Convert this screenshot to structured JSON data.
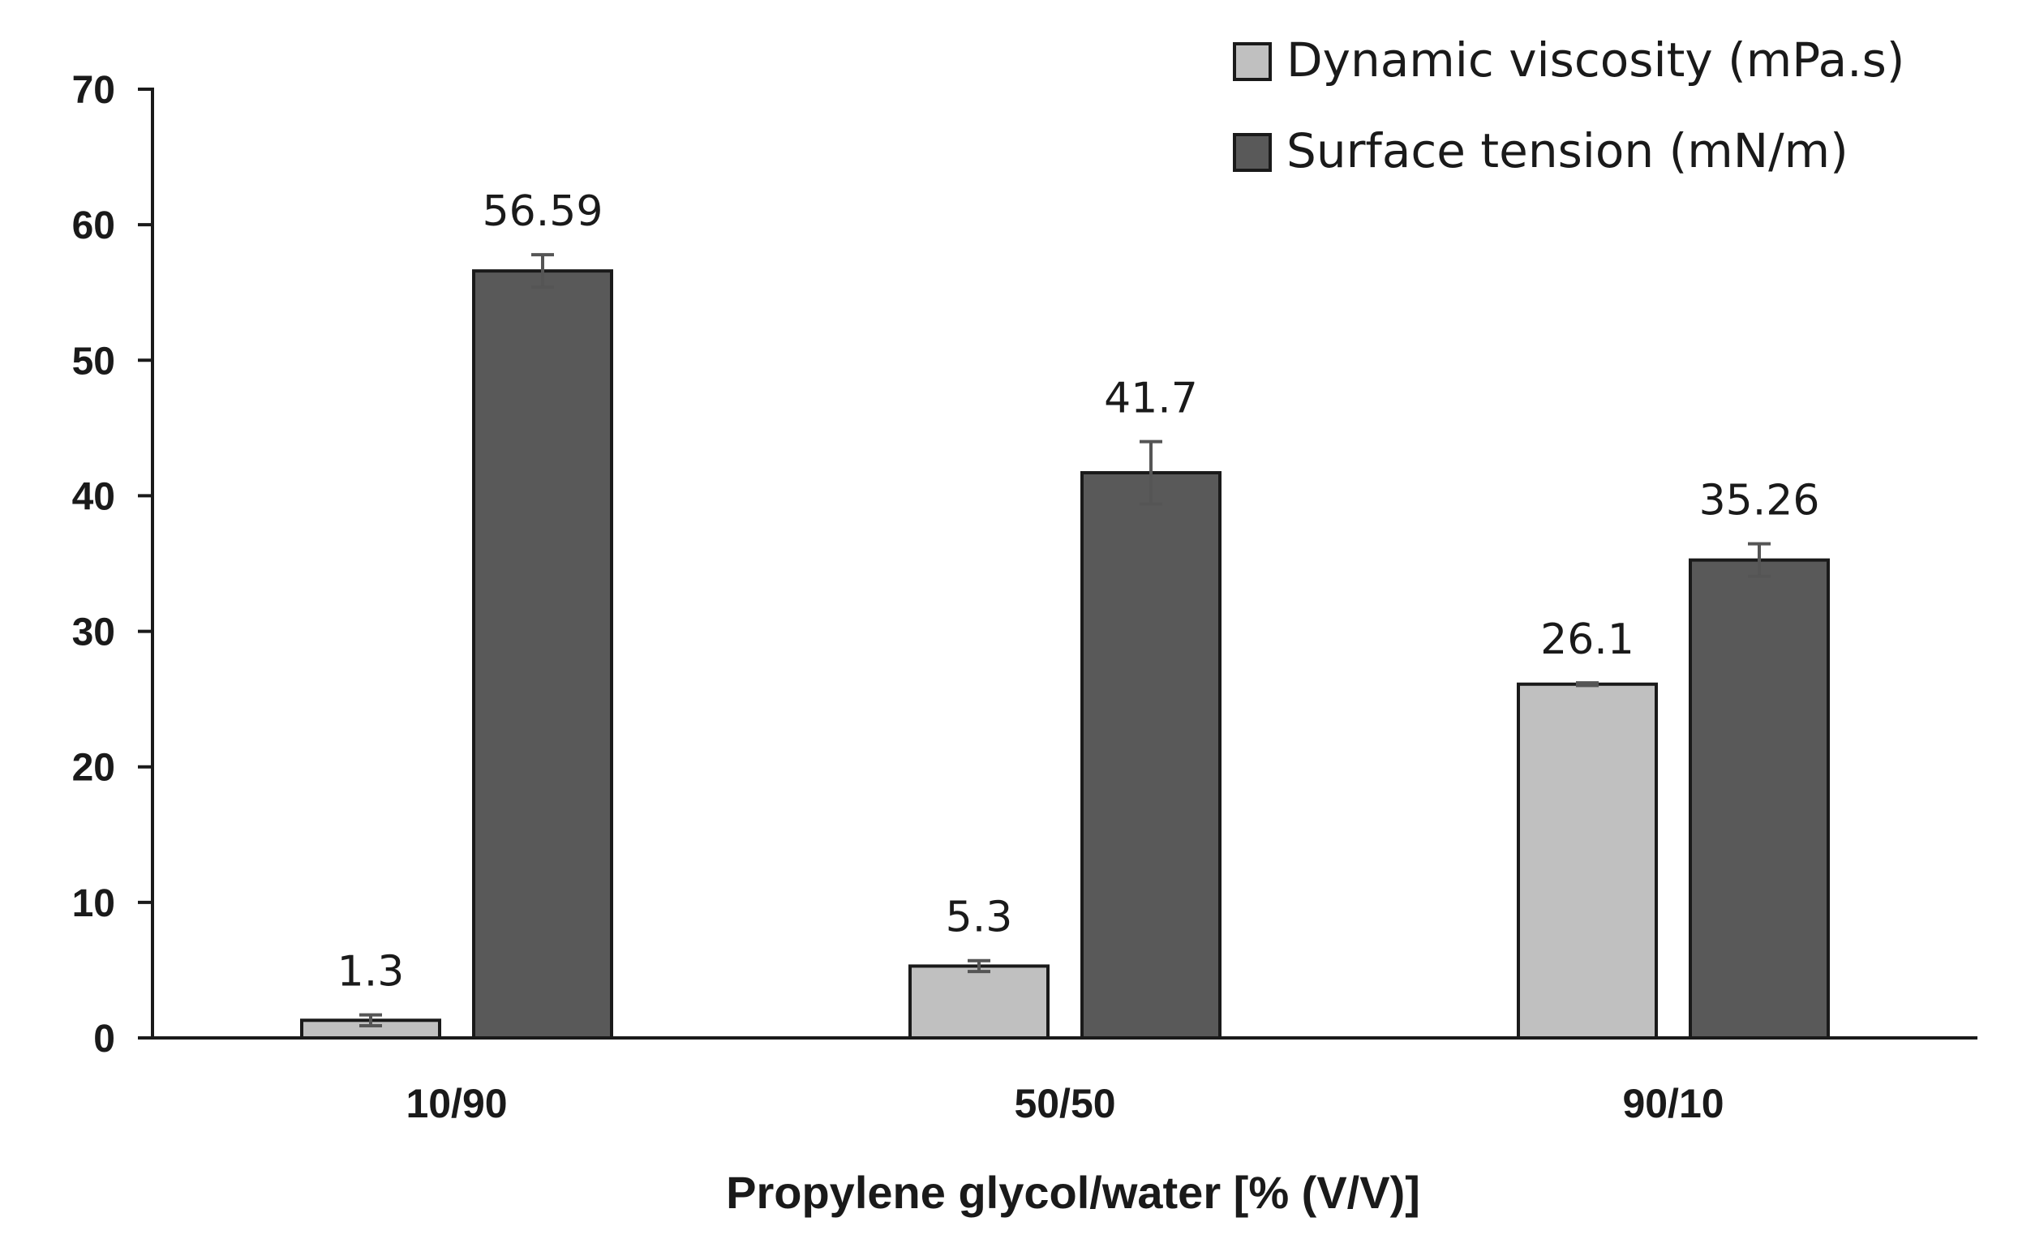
{
  "chart_data": {
    "type": "bar",
    "title": "",
    "xlabel": "Propylene glycol/water  [% (V/V)]",
    "ylabel": "",
    "ylim": [
      0,
      70
    ],
    "ytick_step": 10,
    "categories": [
      "10/90",
      "50/50",
      "90/10"
    ],
    "legend_position": "top-right",
    "series": [
      {
        "name": "Dynamic viscosity (mPa.s)",
        "color": "#c0c0c0",
        "values": [
          1.3,
          5.3,
          26.1
        ],
        "labels": [
          "1.3",
          "5.3",
          "26.1"
        ],
        "errors": [
          0.4,
          0.4,
          0.1
        ]
      },
      {
        "name": "Surface tension (mN/m)",
        "color": "#595959",
        "values": [
          56.59,
          41.7,
          35.26
        ],
        "labels": [
          "56.59",
          "41.7",
          "35.26"
        ],
        "errors": [
          1.2,
          2.3,
          1.2
        ]
      }
    ]
  }
}
